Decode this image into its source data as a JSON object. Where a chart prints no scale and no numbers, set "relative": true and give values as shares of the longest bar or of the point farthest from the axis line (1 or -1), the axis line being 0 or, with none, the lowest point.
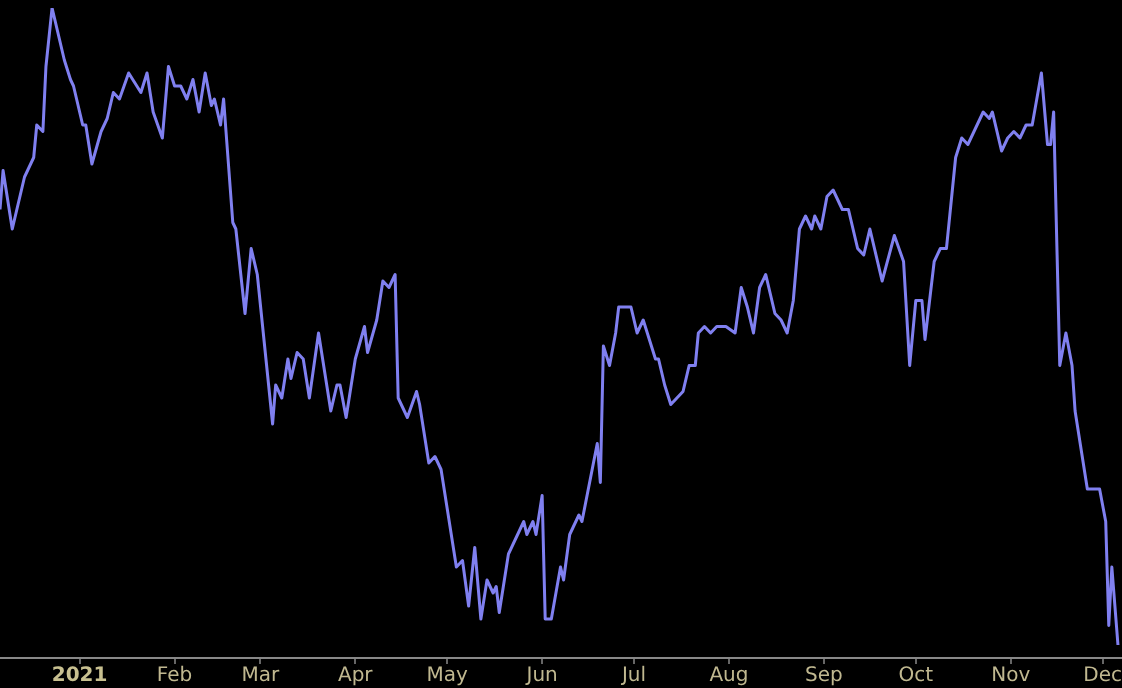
{
  "chart_data": {
    "type": "line",
    "relative": true,
    "tick_labels": "x",
    "grid": false,
    "legend": false,
    "marker": "none",
    "line_style": "solid",
    "xlim": [
      "2020-12-06",
      "2021-12-07"
    ],
    "xticks": [
      {
        "value": "2021-01-01",
        "label": "2021"
      },
      {
        "value": "2021-02-01",
        "label": "Feb"
      },
      {
        "value": "2021-03-01",
        "label": "Mar"
      },
      {
        "value": "2021-04-01",
        "label": "Apr"
      },
      {
        "value": "2021-05-01",
        "label": "May"
      },
      {
        "value": "2021-06-01",
        "label": "Jun"
      },
      {
        "value": "2021-07-01",
        "label": "Jul"
      },
      {
        "value": "2021-08-01",
        "label": "Aug"
      },
      {
        "value": "2021-09-01",
        "label": "Sep"
      },
      {
        "value": "2021-10-01",
        "label": "Oct"
      },
      {
        "value": "2021-11-01",
        "label": "Nov"
      },
      {
        "value": "2021-12-01",
        "label": "Dec"
      }
    ],
    "x": [
      "2020-12-06",
      "2020-12-07",
      "2020-12-10",
      "2020-12-14",
      "2020-12-17",
      "2020-12-18",
      "2020-12-20",
      "2020-12-21",
      "2020-12-23",
      "2020-12-27",
      "2020-12-29",
      "2020-12-30",
      "2021-01-02",
      "2021-01-03",
      "2021-01-05",
      "2021-01-08",
      "2021-01-10",
      "2021-01-12",
      "2021-01-14",
      "2021-01-17",
      "2021-01-21",
      "2021-01-23",
      "2021-01-25",
      "2021-01-28",
      "2021-01-30",
      "2021-02-01",
      "2021-02-03",
      "2021-02-05",
      "2021-02-07",
      "2021-02-09",
      "2021-02-11",
      "2021-02-13",
      "2021-02-14",
      "2021-02-16",
      "2021-02-17",
      "2021-02-20",
      "2021-02-21",
      "2021-02-24",
      "2021-02-26",
      "2021-02-28",
      "2021-03-05",
      "2021-03-06",
      "2021-03-08",
      "2021-03-10",
      "2021-03-11",
      "2021-03-13",
      "2021-03-15",
      "2021-03-17",
      "2021-03-20",
      "2021-03-24",
      "2021-03-26",
      "2021-03-27",
      "2021-03-29",
      "2021-04-01",
      "2021-04-04",
      "2021-04-05",
      "2021-04-08",
      "2021-04-10",
      "2021-04-12",
      "2021-04-14",
      "2021-04-15",
      "2021-04-18",
      "2021-04-21",
      "2021-04-22",
      "2021-04-25",
      "2021-04-27",
      "2021-04-29",
      "2021-05-04",
      "2021-05-06",
      "2021-05-08",
      "2021-05-10",
      "2021-05-12",
      "2021-05-14",
      "2021-05-16",
      "2021-05-17",
      "2021-05-18",
      "2021-05-21",
      "2021-05-23",
      "2021-05-26",
      "2021-05-27",
      "2021-05-29",
      "2021-05-30",
      "2021-06-01",
      "2021-06-02",
      "2021-06-04",
      "2021-06-07",
      "2021-06-08",
      "2021-06-10",
      "2021-06-11",
      "2021-06-13",
      "2021-06-14",
      "2021-06-19",
      "2021-06-20",
      "2021-06-21",
      "2021-06-23",
      "2021-06-25",
      "2021-06-26",
      "2021-06-30",
      "2021-07-02",
      "2021-07-04",
      "2021-07-08",
      "2021-07-09",
      "2021-07-11",
      "2021-07-13",
      "2021-07-17",
      "2021-07-19",
      "2021-07-21",
      "2021-07-22",
      "2021-07-24",
      "2021-07-26",
      "2021-07-28",
      "2021-07-31",
      "2021-08-03",
      "2021-08-05",
      "2021-08-07",
      "2021-08-09",
      "2021-08-11",
      "2021-08-13",
      "2021-08-16",
      "2021-08-18",
      "2021-08-20",
      "2021-08-22",
      "2021-08-24",
      "2021-08-26",
      "2021-08-28",
      "2021-08-29",
      "2021-08-31",
      "2021-09-02",
      "2021-09-04",
      "2021-09-07",
      "2021-09-09",
      "2021-09-12",
      "2021-09-14",
      "2021-09-16",
      "2021-09-20",
      "2021-09-24",
      "2021-09-27",
      "2021-09-29",
      "2021-10-01",
      "2021-10-03",
      "2021-10-04",
      "2021-10-07",
      "2021-10-09",
      "2021-10-11",
      "2021-10-14",
      "2021-10-16",
      "2021-10-18",
      "2021-10-23",
      "2021-10-25",
      "2021-10-26",
      "2021-10-29",
      "2021-10-31",
      "2021-11-02",
      "2021-11-04",
      "2021-11-06",
      "2021-11-08",
      "2021-11-11",
      "2021-11-13",
      "2021-11-14",
      "2021-11-15",
      "2021-11-17",
      "2021-11-19",
      "2021-11-21",
      "2021-11-22",
      "2021-11-26",
      "2021-11-30",
      "2021-12-02",
      "2021-12-03",
      "2021-12-04",
      "2021-12-06"
    ],
    "series": [
      {
        "color": "#8080f0",
        "values": [
          0.69,
          0.75,
          0.66,
          0.74,
          0.77,
          0.82,
          0.81,
          0.91,
          1.0,
          0.92,
          0.89,
          0.88,
          0.82,
          0.82,
          0.76,
          0.81,
          0.83,
          0.87,
          0.86,
          0.9,
          0.87,
          0.9,
          0.84,
          0.8,
          0.91,
          0.88,
          0.88,
          0.86,
          0.89,
          0.84,
          0.9,
          0.85,
          0.86,
          0.82,
          0.86,
          0.67,
          0.66,
          0.53,
          0.63,
          0.59,
          0.36,
          0.42,
          0.4,
          0.46,
          0.43,
          0.47,
          0.46,
          0.4,
          0.5,
          0.38,
          0.42,
          0.42,
          0.37,
          0.46,
          0.51,
          0.47,
          0.52,
          0.58,
          0.57,
          0.59,
          0.4,
          0.37,
          0.41,
          0.39,
          0.3,
          0.31,
          0.29,
          0.14,
          0.15,
          0.08,
          0.17,
          0.06,
          0.12,
          0.1,
          0.11,
          0.07,
          0.16,
          0.18,
          0.21,
          0.19,
          0.21,
          0.19,
          0.25,
          0.06,
          0.06,
          0.14,
          0.12,
          0.19,
          0.2,
          0.22,
          0.21,
          0.33,
          0.27,
          0.48,
          0.45,
          0.5,
          0.54,
          0.54,
          0.5,
          0.52,
          0.46,
          0.46,
          0.42,
          0.39,
          0.41,
          0.45,
          0.45,
          0.5,
          0.51,
          0.5,
          0.51,
          0.51,
          0.5,
          0.57,
          0.54,
          0.5,
          0.57,
          0.59,
          0.53,
          0.52,
          0.5,
          0.55,
          0.66,
          0.68,
          0.66,
          0.68,
          0.66,
          0.71,
          0.72,
          0.69,
          0.69,
          0.63,
          0.62,
          0.66,
          0.58,
          0.65,
          0.61,
          0.45,
          0.55,
          0.55,
          0.49,
          0.61,
          0.63,
          0.63,
          0.77,
          0.8,
          0.79,
          0.84,
          0.83,
          0.84,
          0.78,
          0.8,
          0.81,
          0.8,
          0.82,
          0.82,
          0.9,
          0.79,
          0.79,
          0.84,
          0.45,
          0.5,
          0.45,
          0.38,
          0.26,
          0.26,
          0.21,
          0.05,
          0.14,
          0.02
        ]
      }
    ]
  }
}
